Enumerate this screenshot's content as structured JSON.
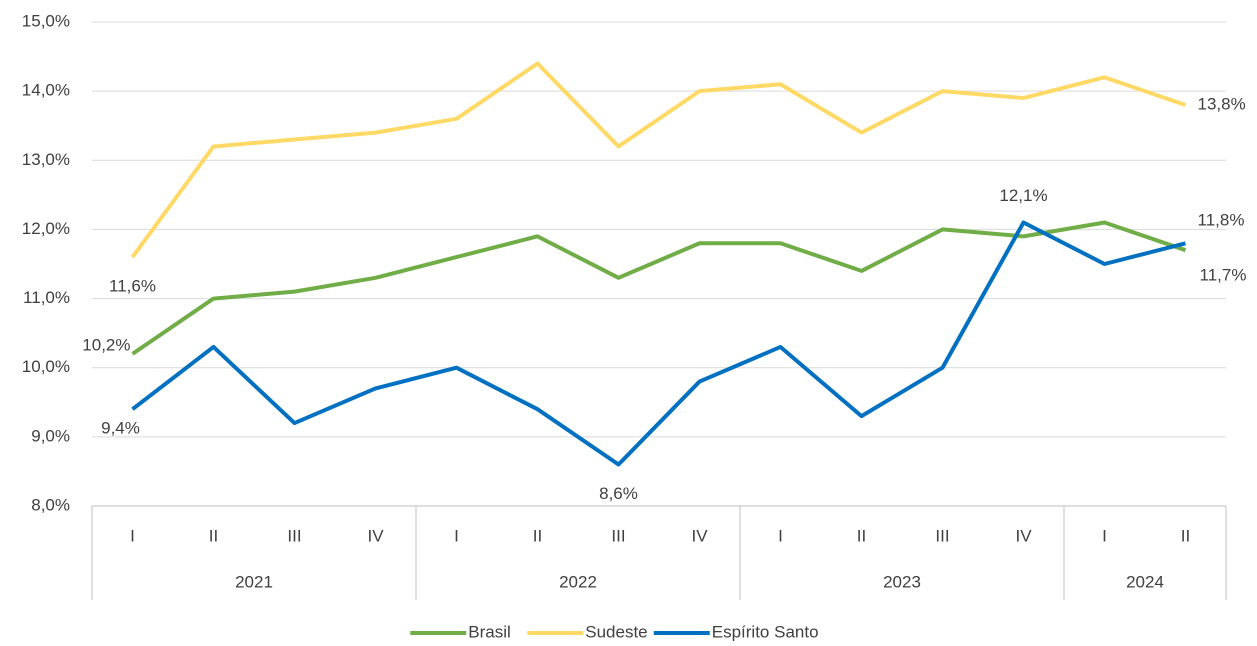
{
  "chart_data": {
    "type": "line",
    "categories": [
      "I",
      "II",
      "III",
      "IV",
      "I",
      "II",
      "III",
      "IV",
      "I",
      "II",
      "III",
      "IV",
      "I",
      "II"
    ],
    "years": [
      "2021",
      "2021",
      "2021",
      "2021",
      "2022",
      "2022",
      "2022",
      "2022",
      "2023",
      "2023",
      "2023",
      "2023",
      "2024",
      "2024"
    ],
    "series": [
      {
        "name": "Brasil",
        "color": "#70ad47",
        "values": [
          10.2,
          11.0,
          11.1,
          11.3,
          11.6,
          11.9,
          11.3,
          11.8,
          11.8,
          11.4,
          12.0,
          11.9,
          12.1,
          11.7
        ],
        "value_labels": [
          "10,2%",
          null,
          null,
          null,
          null,
          null,
          null,
          null,
          null,
          null,
          null,
          null,
          null,
          "11,7%"
        ]
      },
      {
        "name": "Sudeste",
        "color": "#ffd966",
        "values": [
          11.6,
          13.2,
          13.3,
          13.4,
          13.6,
          14.4,
          13.2,
          14.0,
          14.1,
          13.4,
          14.0,
          13.9,
          14.2,
          13.8
        ],
        "value_labels": [
          "11,6%",
          null,
          null,
          null,
          null,
          null,
          null,
          null,
          null,
          null,
          null,
          null,
          null,
          "13,8%"
        ]
      },
      {
        "name": "Espírito Santo",
        "color": "#0070c0",
        "values": [
          9.4,
          10.3,
          9.2,
          9.7,
          10.0,
          9.4,
          8.6,
          9.8,
          10.3,
          9.3,
          10.0,
          12.1,
          11.5,
          11.8
        ],
        "value_labels": [
          "9,4%",
          null,
          null,
          null,
          null,
          null,
          "8,6%",
          null,
          null,
          null,
          null,
          "12,1%",
          null,
          "11,8%"
        ]
      }
    ],
    "ylim": [
      8,
      15
    ],
    "yticks": [
      {
        "value": 8,
        "label": "8,0%"
      },
      {
        "value": 9,
        "label": "9,0%"
      },
      {
        "value": 10,
        "label": "10,0%"
      },
      {
        "value": 11,
        "label": "11,0%"
      },
      {
        "value": 12,
        "label": "12,0%"
      },
      {
        "value": 13,
        "label": "13,0%"
      },
      {
        "value": 14,
        "label": "14,0%"
      },
      {
        "value": 15,
        "label": "15,0%"
      }
    ],
    "grid": true
  }
}
